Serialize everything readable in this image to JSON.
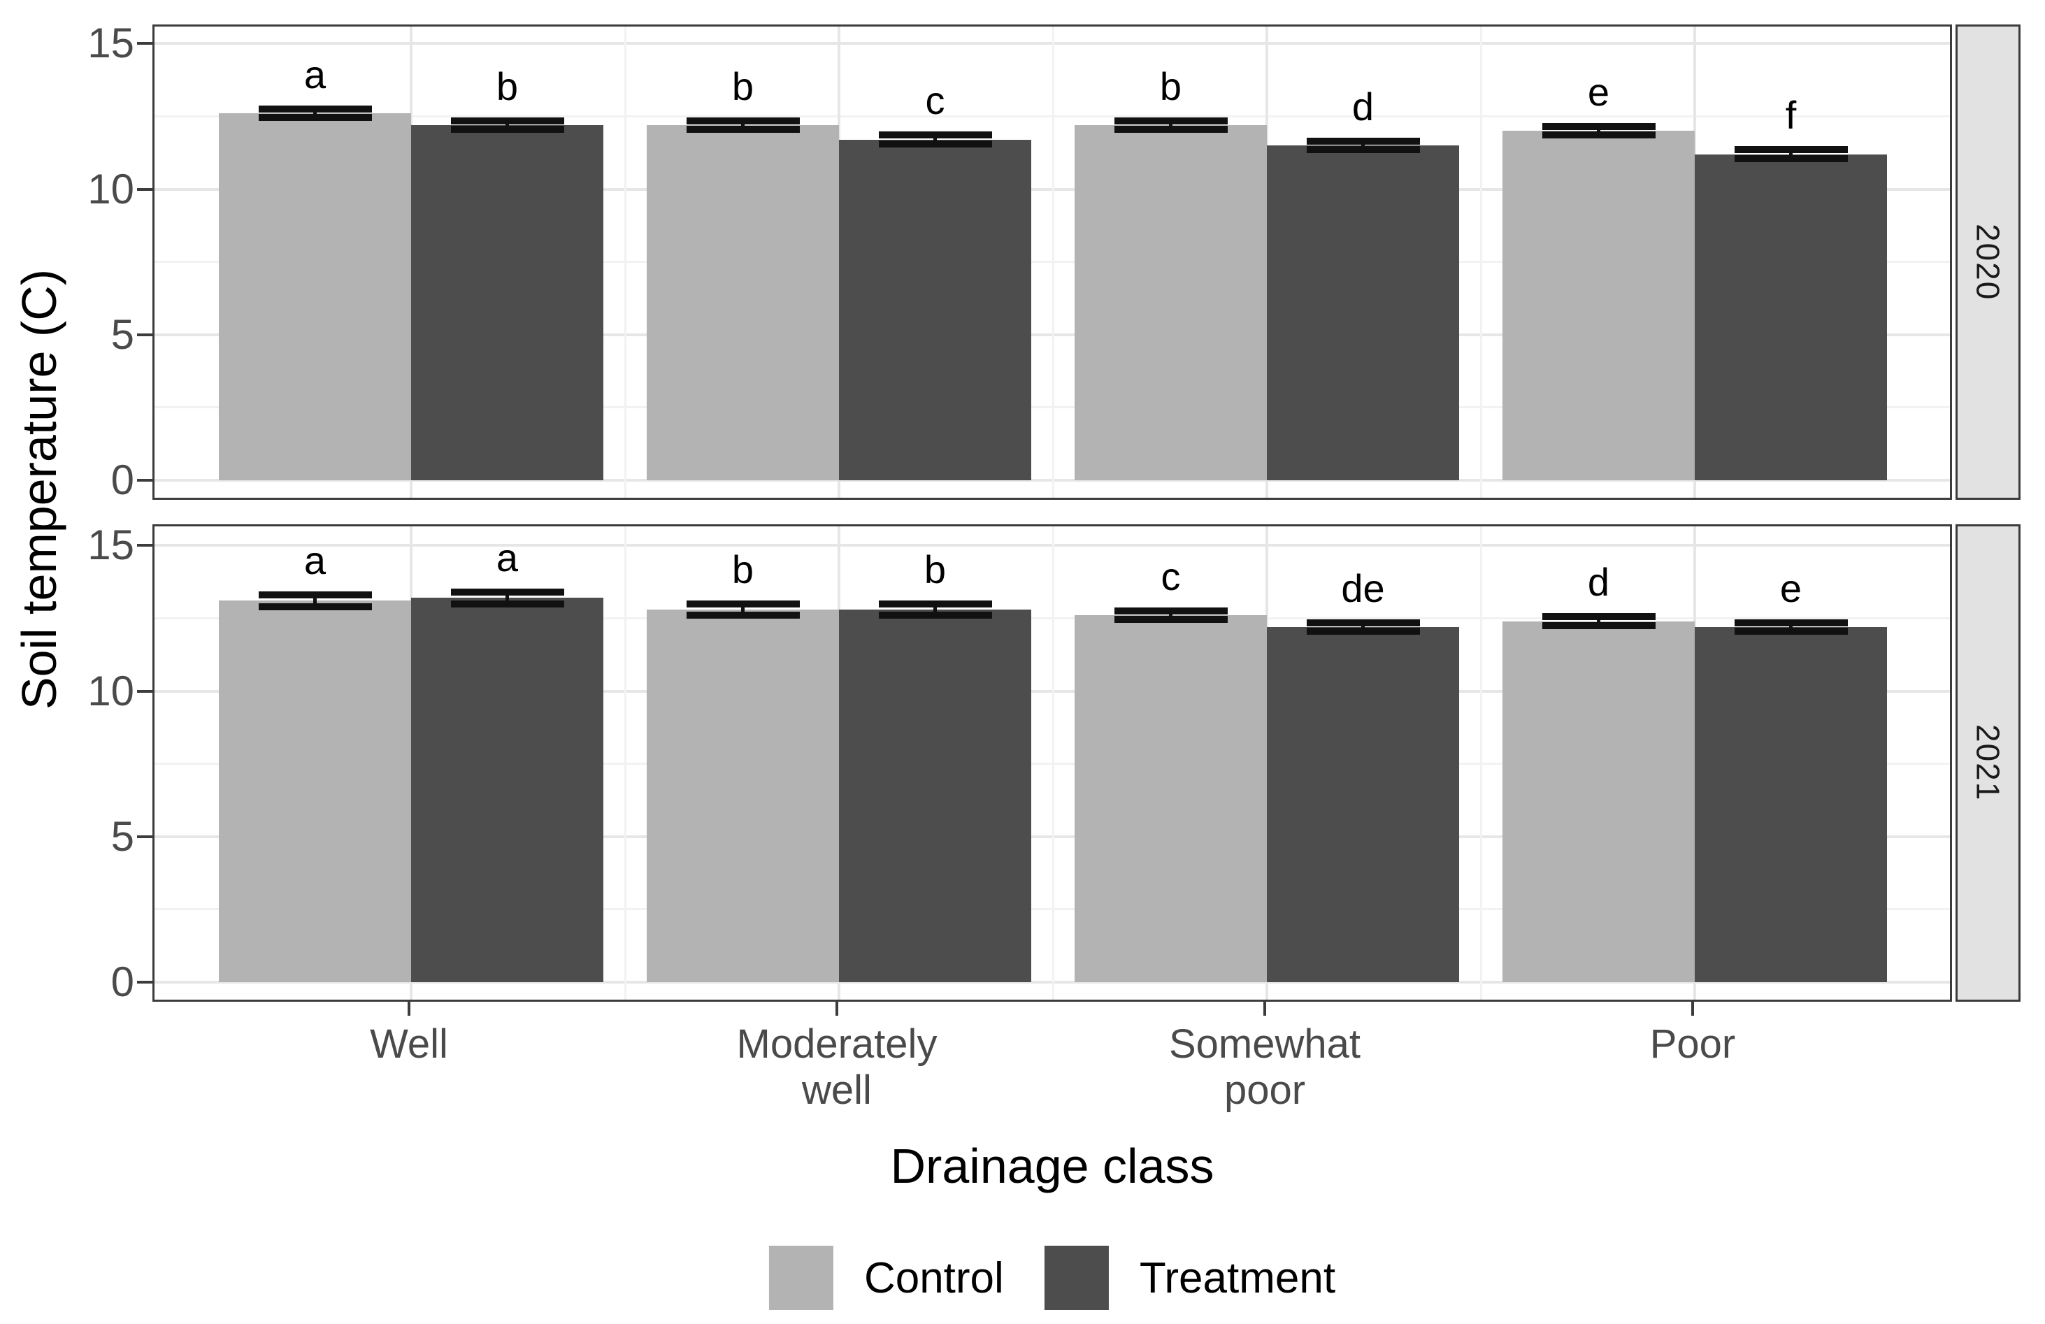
{
  "chart_data": {
    "type": "bar",
    "title": "",
    "ylabel": "Soil temperature (C)",
    "xlabel": "Drainage class",
    "ylim": [
      0,
      15.75
    ],
    "y_major_ticks": [
      "0",
      "5",
      "10",
      "15"
    ],
    "y_major_values": [
      0,
      5,
      10,
      15
    ],
    "y_minor_values": [
      2.5,
      7.5,
      12.5
    ],
    "grid": "on",
    "legend_position": "bottom",
    "error_bars": "standard error with caps",
    "annotation_style": "significance grouping letters above bars",
    "categories": [
      "Well",
      "Moderately well",
      "Somewhat poor",
      "Poor"
    ],
    "category_tick_labels_wrapped": [
      "Well",
      "Moderately\nwell",
      "Somewhat\npoor",
      "Poor"
    ],
    "series": [
      {
        "name": "Control",
        "color": "#b3b3b3"
      },
      {
        "name": "Treatment",
        "color": "#4d4d4d"
      }
    ],
    "facet_variable_values": [
      "2020",
      "2021"
    ],
    "facets": [
      {
        "label": "2020",
        "groups": [
          {
            "category": "Well",
            "bars": [
              {
                "series": "Control",
                "mean": 12.6,
                "se": 0.15,
                "letter": "a"
              },
              {
                "series": "Treatment",
                "mean": 12.2,
                "se": 0.15,
                "letter": "b"
              }
            ]
          },
          {
            "category": "Moderately well",
            "bars": [
              {
                "series": "Control",
                "mean": 12.2,
                "se": 0.15,
                "letter": "b"
              },
              {
                "series": "Treatment",
                "mean": 11.7,
                "se": 0.15,
                "letter": "c"
              }
            ]
          },
          {
            "category": "Somewhat poor",
            "bars": [
              {
                "series": "Control",
                "mean": 12.2,
                "se": 0.15,
                "letter": "b"
              },
              {
                "series": "Treatment",
                "mean": 11.5,
                "se": 0.15,
                "letter": "d"
              }
            ]
          },
          {
            "category": "Poor",
            "bars": [
              {
                "series": "Control",
                "mean": 12.0,
                "se": 0.15,
                "letter": "e"
              },
              {
                "series": "Treatment",
                "mean": 11.2,
                "se": 0.15,
                "letter": "f"
              }
            ]
          }
        ]
      },
      {
        "label": "2021",
        "groups": [
          {
            "category": "Well",
            "bars": [
              {
                "series": "Control",
                "mean": 13.1,
                "se": 0.2,
                "letter": "a"
              },
              {
                "series": "Treatment",
                "mean": 13.2,
                "se": 0.2,
                "letter": "a"
              }
            ]
          },
          {
            "category": "Moderately well",
            "bars": [
              {
                "series": "Control",
                "mean": 12.8,
                "se": 0.2,
                "letter": "b"
              },
              {
                "series": "Treatment",
                "mean": 12.8,
                "se": 0.2,
                "letter": "b"
              }
            ]
          },
          {
            "category": "Somewhat poor",
            "bars": [
              {
                "series": "Control",
                "mean": 12.6,
                "se": 0.15,
                "letter": "c"
              },
              {
                "series": "Treatment",
                "mean": 12.2,
                "se": 0.15,
                "letter": "de"
              }
            ]
          },
          {
            "category": "Poor",
            "bars": [
              {
                "series": "Control",
                "mean": 12.4,
                "se": 0.15,
                "letter": "d"
              },
              {
                "series": "Treatment",
                "mean": 12.2,
                "se": 0.15,
                "letter": "e"
              }
            ]
          }
        ]
      }
    ]
  }
}
